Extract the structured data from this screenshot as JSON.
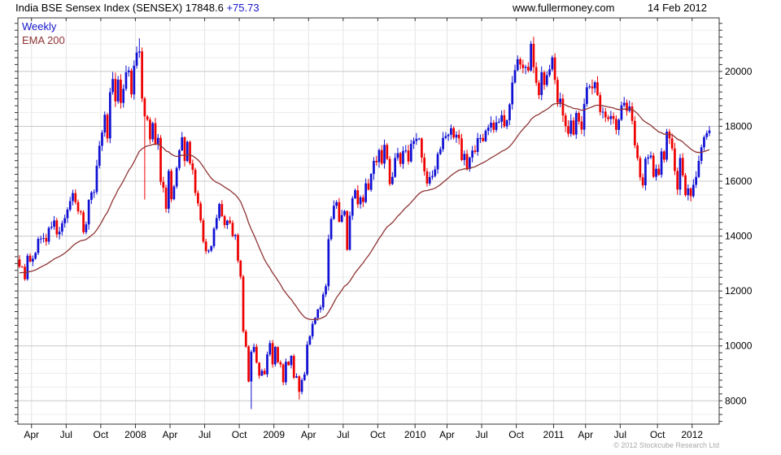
{
  "header": {
    "title": "India BSE Sensex Index (SENSEX)",
    "value": "17848.6",
    "change": "+75.73",
    "site": "www.fullermoney.com",
    "date": "14 Feb 2012"
  },
  "legend": {
    "weekly": "Weekly",
    "ema": "EMA 200"
  },
  "footer": {
    "copyright": "© 2012 Stockcube Research Ltd"
  },
  "colors": {
    "up": "#1010d4",
    "down": "#ee0000",
    "ema": "#8f3434",
    "grid_minor": "#ededed",
    "grid_major": "#c8c8c8",
    "grid_vertical": "#e3e3e3",
    "axis": "#333333",
    "text": "#000000",
    "change_blue": "#1515cc",
    "copyright": "#a9a9a9"
  },
  "chart_data": {
    "type": "candlestick",
    "title": "India BSE Sensex Index (SENSEX)",
    "frequency_label": "Weekly",
    "overlay_label": "EMA 200",
    "interval": "weekly",
    "period_shown": "Feb 2007 - Feb 2012",
    "last_value": 17848.6,
    "last_change": 75.73,
    "ylim": [
      7150,
      21950
    ],
    "y_ticks": [
      8000,
      10000,
      12000,
      14000,
      16000,
      18000,
      20000
    ],
    "y_minor_step": 500,
    "grid": true,
    "x_ticks": [
      {
        "label": "Apr",
        "week": 4.5
      },
      {
        "label": "Jul",
        "week": 17.5
      },
      {
        "label": "Oct",
        "week": 30.5
      },
      {
        "label": "2008",
        "week": 43.5
      },
      {
        "label": "Apr",
        "week": 56.5
      },
      {
        "label": "Jul",
        "week": 69.5
      },
      {
        "label": "Oct",
        "week": 82.5
      },
      {
        "label": "2009",
        "week": 95.5
      },
      {
        "label": "Apr",
        "week": 108.5
      },
      {
        "label": "Jul",
        "week": 121.5
      },
      {
        "label": "Oct",
        "week": 134.5
      },
      {
        "label": "2010",
        "week": 148.5
      },
      {
        "label": "Apr",
        "week": 160.5
      },
      {
        "label": "Jul",
        "week": 173.5
      },
      {
        "label": "Oct",
        "week": 186.5
      },
      {
        "label": "2011",
        "week": 200.5
      },
      {
        "label": "Apr",
        "week": 212.5
      },
      {
        "label": "Jul",
        "week": 225.5
      },
      {
        "label": "Oct",
        "week": 239.5
      },
      {
        "label": "2012",
        "week": 252.5
      }
    ],
    "first_open": 13150,
    "years": [
      {
        "year": "2007",
        "closes": [
          12886,
          12884,
          12430,
          13286,
          13072,
          13177,
          13384,
          13897,
          13908,
          13934,
          13797,
          14303,
          14339,
          14570,
          14063,
          14162,
          14467,
          14651,
          14964,
          15273,
          15565,
          15235,
          14903,
          14868,
          14141,
          14425,
          15319,
          15590,
          15603,
          16564,
          17291,
          17773,
          18420,
          17559,
          19243,
          19724,
          18908,
          19698,
          18852,
          19363,
          19966,
          20031,
          19162,
          20207
        ]
      },
      {
        "year": "2008",
        "closes": [
          20687,
          20728,
          19014,
          18361,
          18242,
          17526,
          18115,
          17349,
          17579,
          15976,
          15761,
          14995,
          16371,
          15343,
          15807,
          16481,
          17126,
          17600,
          16737,
          17435,
          16650,
          16416,
          15573,
          15190,
          14571,
          13802,
          13454,
          13469,
          13635,
          14275,
          14656,
          15168,
          14724,
          14401,
          14565,
          14483,
          14001,
          14042,
          13102,
          12526,
          10528,
          9975,
          8701,
          9788,
          9965,
          9385,
          8915,
          9093,
          8965,
          9690,
          10100,
          9329
        ]
      },
      {
        "year": "2009",
        "closes": [
          9958,
          9406,
          9323,
          8674,
          9424,
          9301,
          9635,
          8843,
          8892,
          8326,
          8756,
          8966,
          10049,
          10349,
          10804,
          11023,
          11329,
          11404,
          11876,
          12174,
          13887,
          14625,
          15104,
          15238,
          14522,
          14765,
          14913,
          13504,
          14745,
          15379,
          15670,
          15160,
          15411,
          15241,
          15922,
          15689,
          16264,
          16741,
          16693,
          17135,
          16643,
          17323,
          16810,
          15896,
          16158,
          16848,
          17021,
          16632,
          17101,
          17119,
          16719,
          17360,
          17464
        ]
      },
      {
        "year": "2010",
        "closes": [
          17540,
          17554,
          16859,
          16357,
          15915,
          16152,
          16191,
          16429,
          16994,
          17166,
          17578,
          17644,
          17692,
          17933,
          17591,
          17694,
          17558,
          16769,
          16995,
          16445,
          16863,
          17117,
          17065,
          17570,
          17574,
          17461,
          17834,
          17956,
          18131,
          17868,
          18144,
          18167,
          18402,
          17998,
          18221,
          18799,
          19595,
          20045,
          20445,
          20250,
          20125,
          20166,
          20032,
          21005,
          20157,
          19585,
          19137,
          19967,
          19509,
          19865,
          20074,
          20509
        ]
      },
      {
        "year": "2011",
        "closes": [
          19692,
          18860,
          19008,
          18396,
          18008,
          17729,
          18212,
          17700,
          18486,
          18174,
          17878,
          18815,
          19420,
          19451,
          19386,
          19602,
          19136,
          18519,
          18531,
          18326,
          18266,
          18376,
          18268,
          17870,
          18240,
          18763,
          18858,
          18562,
          18722,
          18197,
          17306,
          16840,
          16142,
          15849,
          16821,
          16867,
          16934,
          16162,
          16454,
          16233,
          17083,
          16786,
          17805,
          17562,
          17193,
          16372,
          15696,
          16847,
          16213,
          15491,
          15739,
          15455
        ]
      },
      {
        "year": "2012",
        "closes": [
          15868,
          16155,
          16739,
          17234,
          17605,
          17749,
          17848
        ]
      }
    ],
    "high_overrides": {
      "45": 21206,
      "192": 21108
    },
    "low_overrides": {
      "47": 15332,
      "87": 7697,
      "105": 8047
    },
    "ema_alpha": 0.04878,
    "ema_seed": 12650
  }
}
